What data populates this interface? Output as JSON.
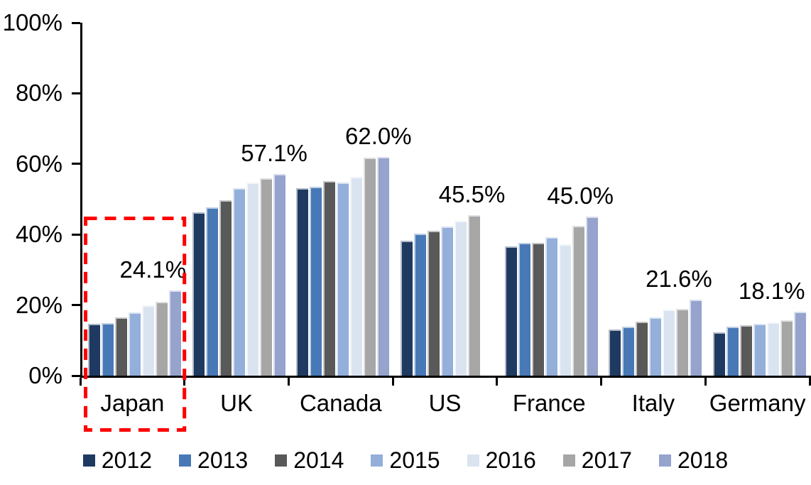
{
  "chart_data": {
    "type": "bar",
    "title": "",
    "xlabel": "",
    "ylabel": "",
    "ylim": [
      0,
      100
    ],
    "ytick_labels": [
      "0%",
      "20%",
      "40%",
      "60%",
      "80%",
      "100%"
    ],
    "grid": false,
    "legend_position": "bottom",
    "axis_color": "#000000",
    "categories": [
      "Japan",
      "UK",
      "Canada",
      "US",
      "France",
      "Italy",
      "Germany"
    ],
    "series": [
      {
        "name": "2012",
        "color": "#1F3A60",
        "values": [
          14.7,
          46.3,
          53.2,
          38.3,
          36.6,
          13.1,
          12.3
        ]
      },
      {
        "name": "2013",
        "color": "#4879B6",
        "values": [
          14.9,
          47.6,
          53.6,
          40.2,
          37.7,
          13.9,
          13.8
        ]
      },
      {
        "name": "2014",
        "color": "#595959",
        "values": [
          16.5,
          49.8,
          55.1,
          41.1,
          37.6,
          15.2,
          14.2
        ]
      },
      {
        "name": "2015",
        "color": "#93AFDA",
        "values": [
          18.0,
          53.2,
          54.8,
          42.2,
          39.3,
          16.6,
          14.6
        ]
      },
      {
        "name": "2016",
        "color": "#DAE4F1",
        "values": [
          20.0,
          54.8,
          56.4,
          43.8,
          37.3,
          18.7,
          15.1
        ]
      },
      {
        "name": "2017",
        "color": "#A6A6A6",
        "values": [
          21.0,
          55.9,
          61.7,
          45.5,
          42.4,
          18.9,
          15.6
        ]
      },
      {
        "name": "2018",
        "color": "#95A3CD",
        "values": [
          24.1,
          57.1,
          62.0,
          null,
          45.0,
          21.6,
          18.1
        ]
      }
    ],
    "value_labels": [
      "24.1%",
      "57.1%",
      "62.0%",
      "45.5%",
      "45.0%",
      "21.6%",
      "18.1%"
    ],
    "highlight": {
      "category": "Japan",
      "style": "red-dashed-box",
      "color": "#FF0000"
    }
  }
}
